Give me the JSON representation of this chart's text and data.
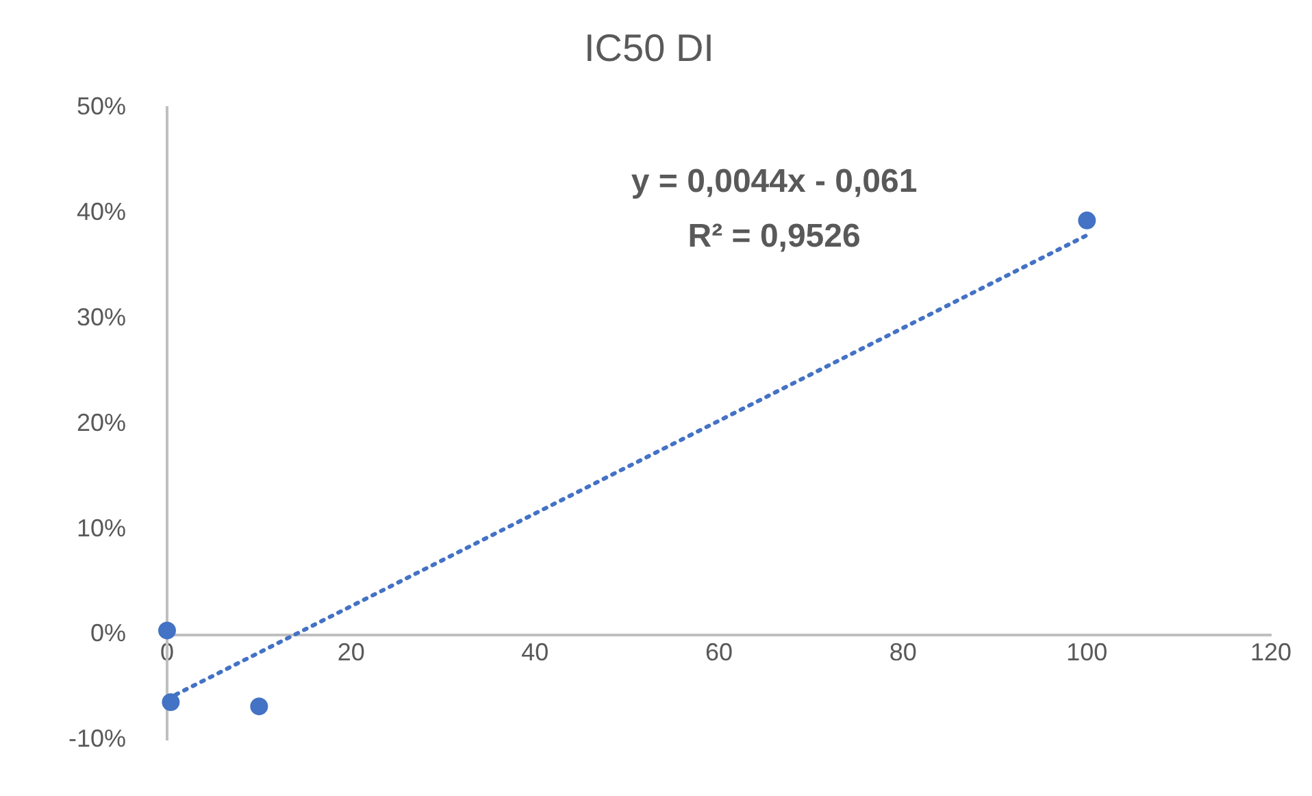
{
  "chart_data": {
    "type": "scatter",
    "title": "IC50 DI",
    "marker": "circle",
    "legend": false,
    "grid": false,
    "xlim": [
      0,
      120
    ],
    "xticks": [
      0,
      20,
      40,
      60,
      80,
      100,
      120
    ],
    "ylim": [
      -0.1,
      0.5
    ],
    "yticks": [
      {
        "value": -0.1,
        "label": "-10%"
      },
      {
        "value": 0,
        "label": "0%"
      },
      {
        "value": 0.1,
        "label": "10%"
      },
      {
        "value": 0.2,
        "label": "20%"
      },
      {
        "value": 0.3,
        "label": "30%"
      },
      {
        "value": 0.4,
        "label": "40%"
      },
      {
        "value": 0.5,
        "label": "50%"
      }
    ],
    "series": [
      {
        "color": "#4472c4",
        "x": [
          0,
          0.4,
          10,
          100
        ],
        "values": [
          0.004,
          -0.064,
          -0.068,
          0.393
        ]
      },
      {
        "type": "line",
        "color": "#4472c4",
        "line_style": "dotted",
        "marker": "none",
        "x": [
          0,
          100
        ],
        "values": [
          -0.061,
          0.379
        ]
      }
    ],
    "annotations": [
      "y = 0,0044x - 0,061",
      "R² = 0,9526"
    ]
  }
}
